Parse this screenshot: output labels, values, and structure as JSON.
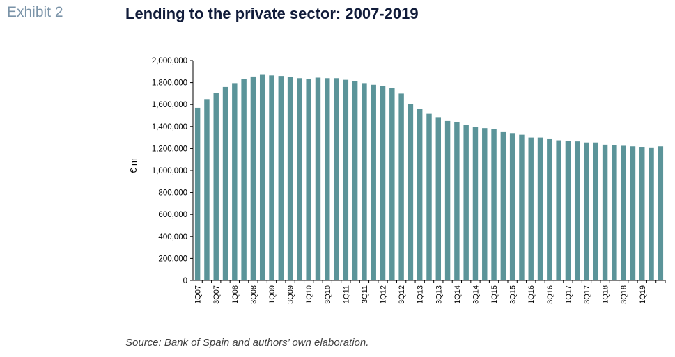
{
  "header": {
    "exhibit": "Exhibit 2",
    "title": "Lending to the private sector: 2007-2019"
  },
  "footer": {
    "source": "Source: Bank of Spain and authors’ own elaboration."
  },
  "colors": {
    "bar": "#5b9499",
    "axis": "#000000",
    "title": "#111c3a",
    "exhibit": "#7a93a8"
  },
  "chart_data": {
    "type": "bar",
    "title": "Lending to the private sector: 2007-2019",
    "xlabel": "",
    "ylabel": "€ m",
    "ylim": [
      0,
      2000000
    ],
    "yticks": [
      0,
      200000,
      400000,
      600000,
      800000,
      1000000,
      1200000,
      1400000,
      1600000,
      1800000,
      2000000
    ],
    "ytick_labels": [
      "0",
      "200,000",
      "400,000",
      "600,000",
      "800,000",
      "1,000,000",
      "1,200,000",
      "1,400,000",
      "1,600,000",
      "1,800,000",
      "2,000,000"
    ],
    "grid": false,
    "categories": [
      "1Q07",
      "2Q07",
      "3Q07",
      "4Q07",
      "1Q08",
      "2Q08",
      "3Q08",
      "4Q08",
      "1Q09",
      "2Q09",
      "3Q09",
      "4Q09",
      "1Q10",
      "2Q10",
      "3Q10",
      "4Q10",
      "1Q11",
      "2Q11",
      "3Q11",
      "4Q11",
      "1Q12",
      "2Q12",
      "3Q12",
      "4Q12",
      "1Q13",
      "2Q13",
      "3Q13",
      "4Q13",
      "1Q14",
      "2Q14",
      "3Q14",
      "4Q14",
      "1Q15",
      "2Q15",
      "3Q15",
      "4Q15",
      "1Q16",
      "2Q16",
      "3Q16",
      "4Q16",
      "1Q17",
      "2Q17",
      "3Q17",
      "4Q17",
      "1Q18",
      "2Q18",
      "3Q18",
      "4Q18",
      "1Q19",
      "2Q19",
      "3Q19"
    ],
    "tick_labels_shown": [
      "1Q07",
      "3Q07",
      "1Q08",
      "3Q08",
      "1Q09",
      "3Q09",
      "1Q10",
      "3Q10",
      "1Q11",
      "3Q11",
      "1Q12",
      "3Q12",
      "1Q13",
      "3Q13",
      "1Q14",
      "3Q14",
      "1Q15",
      "3Q15",
      "1Q16",
      "3Q16",
      "1Q17",
      "3Q17",
      "1Q18",
      "3Q18",
      "1Q19"
    ],
    "values": [
      1570000,
      1650000,
      1705000,
      1760000,
      1795000,
      1835000,
      1855000,
      1870000,
      1865000,
      1860000,
      1850000,
      1840000,
      1835000,
      1845000,
      1840000,
      1840000,
      1825000,
      1815000,
      1795000,
      1780000,
      1770000,
      1750000,
      1700000,
      1605000,
      1560000,
      1515000,
      1485000,
      1450000,
      1440000,
      1415000,
      1395000,
      1385000,
      1375000,
      1355000,
      1340000,
      1325000,
      1300000,
      1300000,
      1285000,
      1275000,
      1270000,
      1265000,
      1255000,
      1255000,
      1235000,
      1230000,
      1225000,
      1220000,
      1215000,
      1210000,
      1220000
    ]
  }
}
